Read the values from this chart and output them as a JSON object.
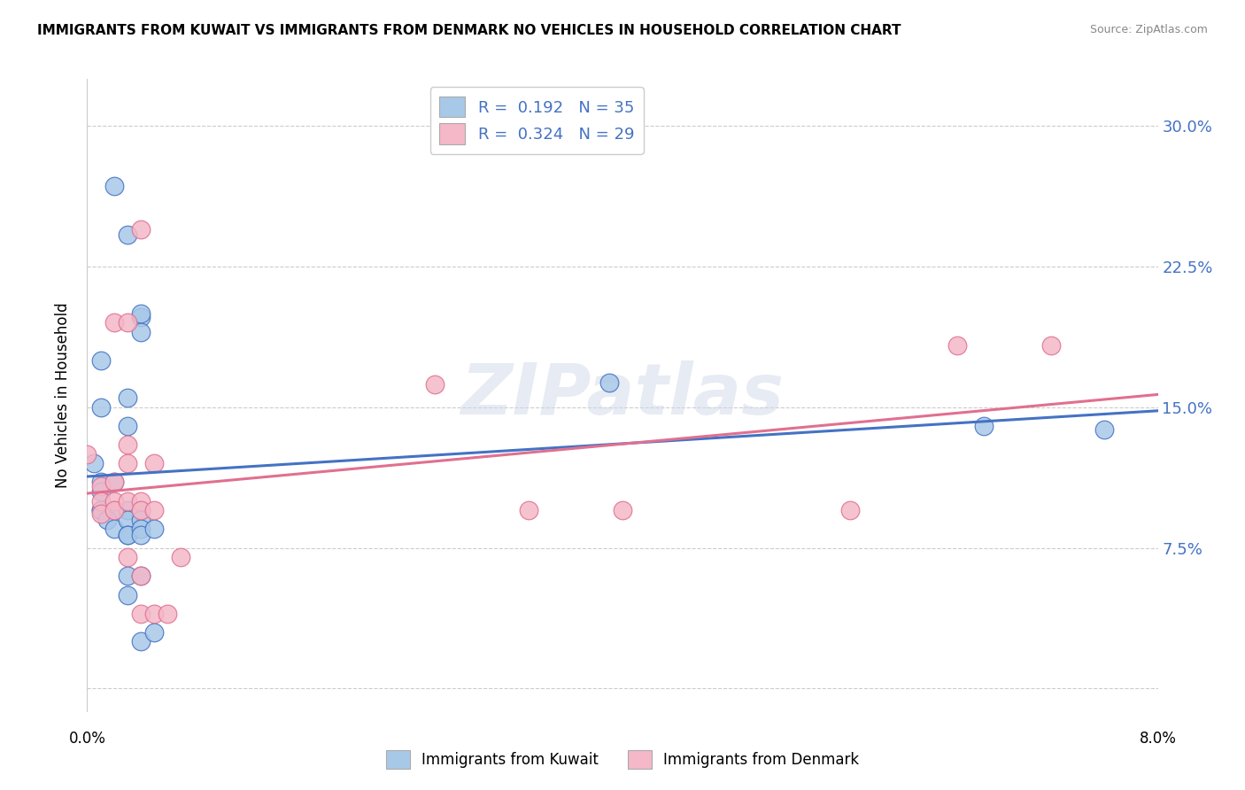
{
  "title": "IMMIGRANTS FROM KUWAIT VS IMMIGRANTS FROM DENMARK NO VEHICLES IN HOUSEHOLD CORRELATION CHART",
  "source": "Source: ZipAtlas.com",
  "ylabel": "No Vehicles in Household",
  "yticks": [
    0.0,
    0.075,
    0.15,
    0.225,
    0.3
  ],
  "ytick_labels": [
    "",
    "7.5%",
    "15.0%",
    "22.5%",
    "30.0%"
  ],
  "xlim": [
    0.0,
    0.08
  ],
  "ylim": [
    -0.012,
    0.325
  ],
  "kuwait_r": 0.192,
  "kuwait_n": 35,
  "denmark_r": 0.324,
  "denmark_n": 29,
  "kuwait_color": "#a8c8e8",
  "denmark_color": "#f4b8c8",
  "kuwait_line_color": "#4472c4",
  "denmark_line_color": "#e07090",
  "background_color": "#ffffff",
  "grid_color": "#cccccc",
  "kuwait_points": [
    [
      0.001,
      0.15
    ],
    [
      0.002,
      0.268
    ],
    [
      0.003,
      0.242
    ],
    [
      0.004,
      0.198
    ],
    [
      0.001,
      0.175
    ],
    [
      0.0005,
      0.12
    ],
    [
      0.001,
      0.11
    ],
    [
      0.001,
      0.105
    ],
    [
      0.002,
      0.11
    ],
    [
      0.001,
      0.095
    ],
    [
      0.001,
      0.095
    ],
    [
      0.002,
      0.095
    ],
    [
      0.0015,
      0.09
    ],
    [
      0.002,
      0.085
    ],
    [
      0.003,
      0.155
    ],
    [
      0.003,
      0.14
    ],
    [
      0.003,
      0.095
    ],
    [
      0.003,
      0.09
    ],
    [
      0.003,
      0.082
    ],
    [
      0.003,
      0.082
    ],
    [
      0.003,
      0.06
    ],
    [
      0.003,
      0.05
    ],
    [
      0.004,
      0.2
    ],
    [
      0.004,
      0.19
    ],
    [
      0.004,
      0.095
    ],
    [
      0.004,
      0.09
    ],
    [
      0.004,
      0.085
    ],
    [
      0.004,
      0.082
    ],
    [
      0.004,
      0.06
    ],
    [
      0.004,
      0.025
    ],
    [
      0.005,
      0.085
    ],
    [
      0.005,
      0.03
    ],
    [
      0.039,
      0.163
    ],
    [
      0.067,
      0.14
    ],
    [
      0.076,
      0.138
    ]
  ],
  "denmark_points": [
    [
      0.0,
      0.125
    ],
    [
      0.001,
      0.108
    ],
    [
      0.001,
      0.1
    ],
    [
      0.001,
      0.093
    ],
    [
      0.002,
      0.11
    ],
    [
      0.002,
      0.1
    ],
    [
      0.002,
      0.095
    ],
    [
      0.002,
      0.195
    ],
    [
      0.003,
      0.195
    ],
    [
      0.003,
      0.13
    ],
    [
      0.003,
      0.12
    ],
    [
      0.003,
      0.1
    ],
    [
      0.003,
      0.07
    ],
    [
      0.004,
      0.245
    ],
    [
      0.004,
      0.1
    ],
    [
      0.004,
      0.095
    ],
    [
      0.004,
      0.06
    ],
    [
      0.004,
      0.04
    ],
    [
      0.005,
      0.12
    ],
    [
      0.005,
      0.095
    ],
    [
      0.005,
      0.04
    ],
    [
      0.006,
      0.04
    ],
    [
      0.007,
      0.07
    ],
    [
      0.026,
      0.162
    ],
    [
      0.033,
      0.095
    ],
    [
      0.04,
      0.095
    ],
    [
      0.057,
      0.095
    ],
    [
      0.065,
      0.183
    ],
    [
      0.072,
      0.183
    ]
  ]
}
